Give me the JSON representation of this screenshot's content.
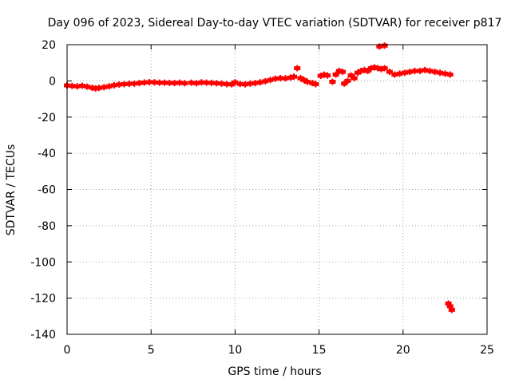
{
  "chart_data": {
    "type": "scatter",
    "title": "Day 096 of 2023, Sidereal Day-to-day VTEC variation (SDTVAR) for receiver p817",
    "xlabel": "GPS time / hours",
    "ylabel": "SDTVAR / TECUs",
    "xlim": [
      0,
      25
    ],
    "ylim": [
      -140,
      20
    ],
    "xticks": [
      0,
      5,
      10,
      15,
      20,
      25
    ],
    "yticks": [
      20,
      0,
      -20,
      -40,
      -60,
      -80,
      -100,
      -120,
      -140
    ],
    "grid": true,
    "marker": "+",
    "series": [
      {
        "name": "SDTVAR",
        "color": "#ff0000",
        "points": [
          [
            0.0,
            -2.5
          ],
          [
            0.3,
            -2.8
          ],
          [
            0.6,
            -3.0
          ],
          [
            0.9,
            -2.7
          ],
          [
            1.2,
            -3.2
          ],
          [
            1.5,
            -3.8
          ],
          [
            1.7,
            -4.2
          ],
          [
            1.9,
            -3.9
          ],
          [
            2.2,
            -3.5
          ],
          [
            2.5,
            -3.0
          ],
          [
            2.8,
            -2.4
          ],
          [
            3.1,
            -2.0
          ],
          [
            3.4,
            -1.8
          ],
          [
            3.7,
            -1.6
          ],
          [
            4.0,
            -1.5
          ],
          [
            4.3,
            -1.2
          ],
          [
            4.6,
            -0.9
          ],
          [
            4.9,
            -0.7
          ],
          [
            5.2,
            -0.8
          ],
          [
            5.5,
            -1.0
          ],
          [
            5.8,
            -1.0
          ],
          [
            6.1,
            -1.1
          ],
          [
            6.4,
            -1.2
          ],
          [
            6.7,
            -1.0
          ],
          [
            7.0,
            -1.3
          ],
          [
            7.4,
            -1.0
          ],
          [
            7.7,
            -1.3
          ],
          [
            8.0,
            -0.8
          ],
          [
            8.3,
            -1.0
          ],
          [
            8.6,
            -1.1
          ],
          [
            8.9,
            -1.3
          ],
          [
            9.2,
            -1.5
          ],
          [
            9.5,
            -1.8
          ],
          [
            9.8,
            -1.9
          ],
          [
            10.0,
            -0.8
          ],
          [
            10.3,
            -1.7
          ],
          [
            10.6,
            -1.9
          ],
          [
            10.9,
            -1.5
          ],
          [
            11.2,
            -1.2
          ],
          [
            11.5,
            -0.8
          ],
          [
            11.8,
            -0.2
          ],
          [
            12.1,
            0.5
          ],
          [
            12.4,
            1.2
          ],
          [
            12.7,
            1.5
          ],
          [
            13.0,
            1.4
          ],
          [
            13.3,
            1.8
          ],
          [
            13.5,
            2.3
          ],
          [
            13.7,
            7.0
          ],
          [
            13.9,
            1.5
          ],
          [
            14.1,
            0.5
          ],
          [
            14.3,
            -0.5
          ],
          [
            14.6,
            -1.2
          ],
          [
            14.8,
            -1.8
          ],
          [
            15.1,
            2.8
          ],
          [
            15.3,
            3.4
          ],
          [
            15.5,
            3.0
          ],
          [
            15.8,
            -0.5
          ],
          [
            16.0,
            3.5
          ],
          [
            16.2,
            5.5
          ],
          [
            16.4,
            5.0
          ],
          [
            16.5,
            -1.5
          ],
          [
            16.7,
            0.0
          ],
          [
            16.9,
            3.0
          ],
          [
            17.1,
            1.5
          ],
          [
            17.3,
            4.5
          ],
          [
            17.5,
            5.5
          ],
          [
            17.7,
            6.0
          ],
          [
            17.9,
            5.5
          ],
          [
            18.1,
            7.0
          ],
          [
            18.3,
            7.5
          ],
          [
            18.5,
            7.0
          ],
          [
            18.7,
            6.5
          ],
          [
            18.9,
            7.0
          ],
          [
            18.6,
            19.0
          ],
          [
            18.9,
            19.5
          ],
          [
            19.2,
            5.0
          ],
          [
            19.5,
            3.5
          ],
          [
            19.8,
            4.0
          ],
          [
            20.1,
            4.5
          ],
          [
            20.4,
            5.0
          ],
          [
            20.7,
            5.5
          ],
          [
            21.0,
            5.5
          ],
          [
            21.3,
            6.0
          ],
          [
            21.6,
            5.5
          ],
          [
            21.9,
            5.0
          ],
          [
            22.2,
            4.5
          ],
          [
            22.5,
            4.0
          ],
          [
            22.8,
            3.5
          ],
          [
            22.7,
            -123.0
          ],
          [
            22.8,
            -124.5
          ],
          [
            22.9,
            -126.5
          ]
        ]
      }
    ]
  }
}
